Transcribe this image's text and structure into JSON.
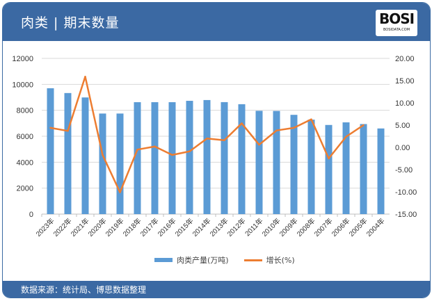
{
  "header": {
    "title": "肉类 | 期末数量",
    "logo_text": "BOSI",
    "logo_sub": "BOSIDATA.COM"
  },
  "footer": {
    "source": "数据来源：统计局、博思数据整理"
  },
  "colors": {
    "bar": "#5b9bd5",
    "line": "#ed7d31",
    "header": "#3b69a3"
  },
  "chart_data": {
    "type": "bar+line",
    "categories": [
      "2023年",
      "2022年",
      "2021年",
      "2020年",
      "2019年",
      "2018年",
      "2017年",
      "2016年",
      "2015年",
      "2014年",
      "2013年",
      "2012年",
      "2011年",
      "2010年",
      "2009年",
      "2008年",
      "2007年",
      "2006年",
      "2005年",
      "2004年"
    ],
    "series": [
      {
        "name": "肉类产量(万吨)",
        "type": "bar",
        "axis": "left",
        "values": [
          9700,
          9330,
          8990,
          7750,
          7750,
          8625,
          8625,
          8625,
          8730,
          8790,
          8630,
          8470,
          7960,
          7950,
          7650,
          7280,
          6870,
          7070,
          6940,
          6600
        ]
      },
      {
        "name": "增长(%)",
        "type": "line",
        "axis": "right",
        "values": [
          4.4,
          3.7,
          15.9,
          -1.7,
          -10.1,
          -0.5,
          0.2,
          -1.7,
          -0.9,
          2.0,
          1.6,
          5.4,
          0.6,
          3.8,
          4.4,
          6.3,
          -2.5,
          2.4,
          5.0,
          null
        ]
      }
    ],
    "left_axis": {
      "ylim": [
        0,
        12000
      ],
      "ticks": [
        "0",
        "2000",
        "4000",
        "6000",
        "8000",
        "10000",
        "12000"
      ]
    },
    "right_axis": {
      "ylim": [
        -15,
        20
      ],
      "ticks": [
        "-15.00",
        "-10.00",
        "-5.00",
        "0.00",
        "5.00",
        "10.00",
        "15.00",
        "20.00"
      ]
    },
    "grid": true,
    "legend": "bottom"
  }
}
